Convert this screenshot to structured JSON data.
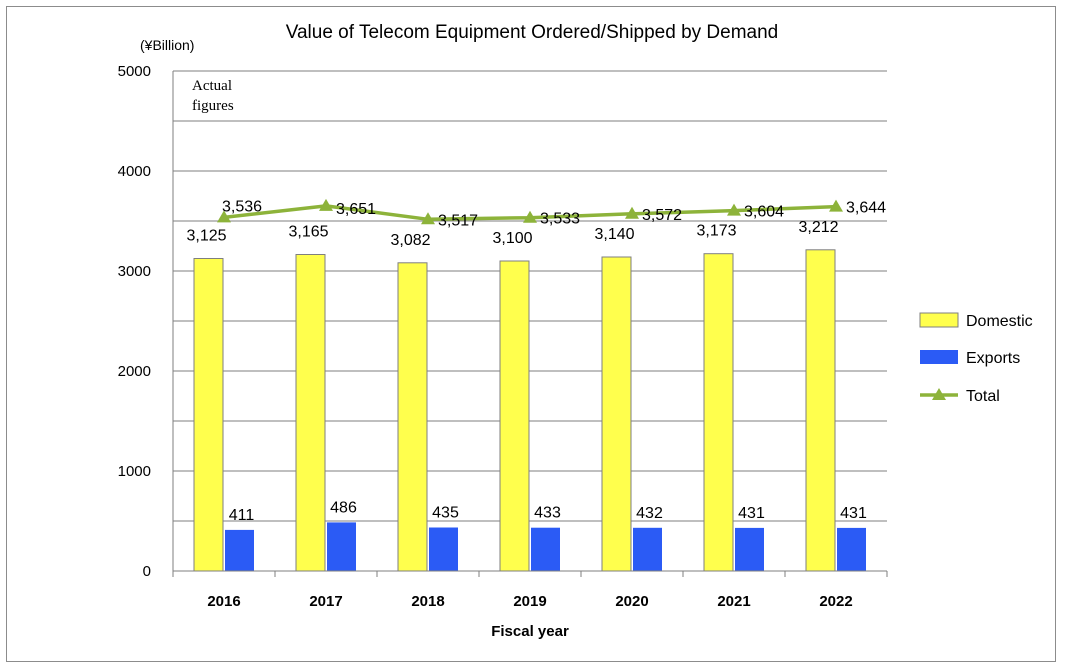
{
  "chart_data": {
    "type": "bar",
    "title": "Value of  Telecom Equipment Ordered/Shipped by Demand",
    "unit_label": "(¥Billion)",
    "note": [
      "Actual",
      "figures"
    ],
    "xlabel": "Fiscal year",
    "ylabel": "",
    "ylim": [
      0,
      5000
    ],
    "yticks": [
      0,
      1000,
      2000,
      3000,
      4000,
      5000
    ],
    "grid": true,
    "legend_position": "right",
    "categories": [
      "2016",
      "2017",
      "2018",
      "2019",
      "2020",
      "2021",
      "2022"
    ],
    "series": [
      {
        "name": "Domestic",
        "type": "bar",
        "color": "#ffff4d",
        "values": [
          3125,
          3165,
          3082,
          3100,
          3140,
          3173,
          3212
        ],
        "labels": [
          "3,125",
          "3,165",
          "3,082",
          "3,100",
          "3,140",
          "3,173",
          "3,212"
        ]
      },
      {
        "name": "Exports",
        "type": "bar",
        "color": "#2b5bf5",
        "values": [
          411,
          486,
          435,
          433,
          432,
          431,
          431
        ],
        "labels": [
          "411",
          "486",
          "435",
          "433",
          "432",
          "431",
          "431"
        ]
      },
      {
        "name": "Total",
        "type": "line",
        "color": "#8db33a",
        "values": [
          3536,
          3651,
          3517,
          3533,
          3572,
          3604,
          3644
        ],
        "labels": [
          "3,536",
          "3,651",
          "3,517",
          "3,533",
          "3,572",
          "3,604",
          "3,644"
        ]
      }
    ]
  }
}
